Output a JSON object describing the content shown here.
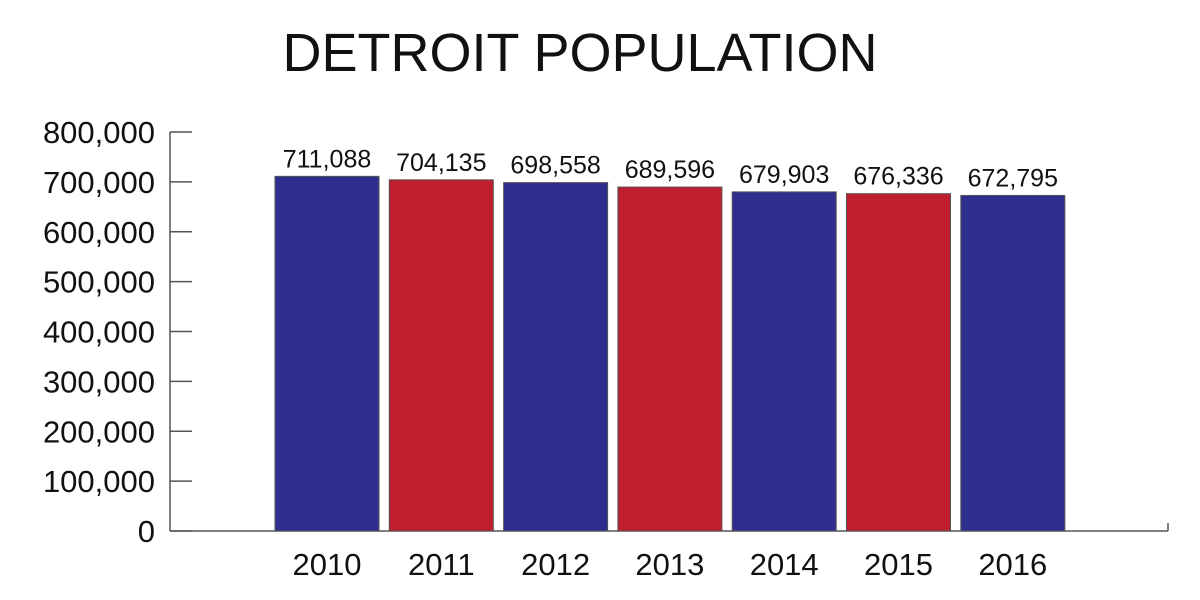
{
  "chart_data": {
    "type": "bar",
    "title": "DETROIT POPULATION",
    "xlabel": "",
    "ylabel": "",
    "categories": [
      "2010",
      "2011",
      "2012",
      "2013",
      "2014",
      "2015",
      "2016"
    ],
    "values": [
      711088,
      704135,
      698558,
      689596,
      679903,
      676336,
      672795
    ],
    "data_labels": [
      "711,088",
      "704,135",
      "698,558",
      "689,596",
      "679,903",
      "676,336",
      "672,795"
    ],
    "ylim": [
      0,
      800000
    ],
    "yticks": [
      0,
      100000,
      200000,
      300000,
      400000,
      500000,
      600000,
      700000,
      800000
    ],
    "ytick_labels": [
      "0",
      "100,000",
      "200,000",
      "300,000",
      "400,000",
      "500,000",
      "600,000",
      "700,000",
      "800,000"
    ],
    "bar_colors": [
      "#2e2e8e",
      "#be1e2d",
      "#2e2e8e",
      "#be1e2d",
      "#2e2e8e",
      "#be1e2d",
      "#2e2e8e"
    ],
    "axis_color": "#555555",
    "grid": false,
    "legend": "none"
  }
}
